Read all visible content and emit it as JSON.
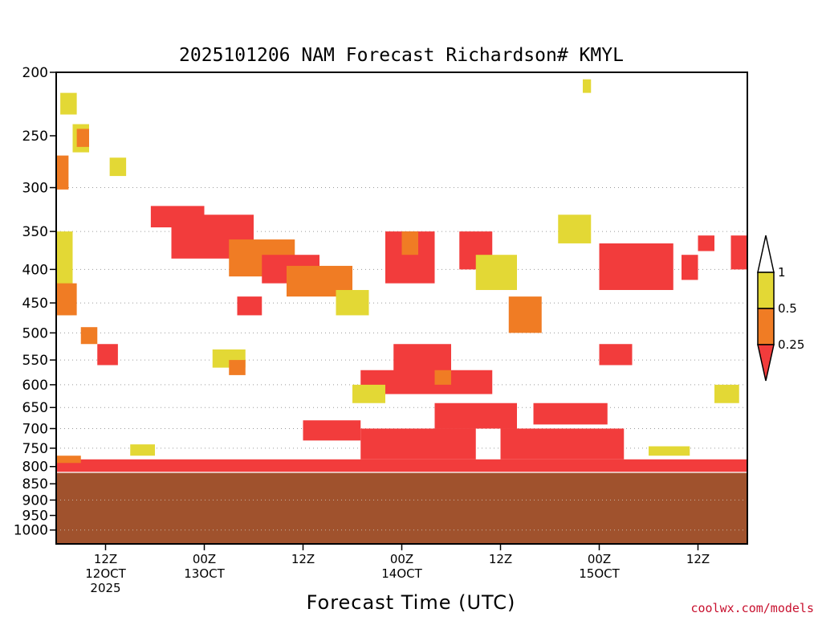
{
  "chart_data": {
    "type": "heatmap",
    "title": "2025101206 NAM Forecast Richardson# KMYL",
    "xlabel": "Forecast Time (UTC)",
    "ylabel": "",
    "y_scale": "log",
    "y_reversed": true,
    "ylim": [
      1050,
      200
    ],
    "y_ticks": [
      200,
      250,
      300,
      350,
      400,
      450,
      500,
      550,
      600,
      650,
      700,
      750,
      800,
      850,
      900,
      950,
      1000
    ],
    "x_range_hours": [
      6,
      90
    ],
    "x_ticks": [
      {
        "hour": 12,
        "lines": [
          "12Z",
          "12OCT",
          "2025"
        ]
      },
      {
        "hour": 24,
        "lines": [
          "00Z",
          "13OCT"
        ]
      },
      {
        "hour": 36,
        "lines": [
          "12Z"
        ]
      },
      {
        "hour": 48,
        "lines": [
          "00Z",
          "14OCT"
        ]
      },
      {
        "hour": 60,
        "lines": [
          "12Z"
        ]
      },
      {
        "hour": 72,
        "lines": [
          "00Z",
          "15OCT"
        ]
      },
      {
        "hour": 84,
        "lines": [
          "12Z"
        ]
      }
    ],
    "grid": "dotted horizontal at 300, 350, 400, 450, 500, 550, 600, 650, 700, 750, 900, 1000",
    "surface_pressure_hPa": 818,
    "colorbar": {
      "levels": [
        "0.25",
        "0.5",
        "1"
      ],
      "colors": {
        "below_0.25": "#f23c3c",
        "0.25-0.5": "#f07c24",
        "0.5-1": "#e3d835",
        "above_1": "#ffffff",
        "ground": "#a0522d"
      }
    },
    "regions": [
      {
        "category": "0.5-1",
        "hours": [
          6.5,
          8.5
        ],
        "p": [
          215,
          232
        ]
      },
      {
        "category": "0.5-1",
        "hours": [
          8,
          10
        ],
        "p": [
          240,
          265
        ]
      },
      {
        "category": "0.25-0.5",
        "hours": [
          8.5,
          10
        ],
        "p": [
          244,
          260
        ]
      },
      {
        "category": "0.25-0.5",
        "hours": [
          6,
          7.5
        ],
        "p": [
          268,
          302
        ]
      },
      {
        "category": "0.5-1",
        "hours": [
          12.5,
          14.5
        ],
        "p": [
          270,
          288
        ]
      },
      {
        "category": "0.5-1",
        "hours": [
          6,
          8
        ],
        "p": [
          350,
          470
        ]
      },
      {
        "category": "0.25-0.5",
        "hours": [
          6,
          8.5
        ],
        "p": [
          420,
          470
        ]
      },
      {
        "category": "0.25-0.5",
        "hours": [
          9,
          11
        ],
        "p": [
          490,
          520
        ]
      },
      {
        "category": "below_0.25",
        "hours": [
          11,
          13.5
        ],
        "p": [
          520,
          560
        ]
      },
      {
        "category": "below_0.25",
        "hours": [
          17.5,
          24
        ],
        "p": [
          320,
          345
        ]
      },
      {
        "category": "below_0.25",
        "hours": [
          20,
          30
        ],
        "p": [
          330,
          385
        ]
      },
      {
        "category": "0.25-0.5",
        "hours": [
          27,
          35
        ],
        "p": [
          360,
          410
        ]
      },
      {
        "category": "below_0.25",
        "hours": [
          31,
          38
        ],
        "p": [
          380,
          420
        ]
      },
      {
        "category": "0.25-0.5",
        "hours": [
          34,
          42
        ],
        "p": [
          395,
          440
        ]
      },
      {
        "category": "below_0.25",
        "hours": [
          46,
          52
        ],
        "p": [
          350,
          420
        ]
      },
      {
        "category": "0.25-0.5",
        "hours": [
          48,
          50
        ],
        "p": [
          350,
          380
        ]
      },
      {
        "category": "below_0.25",
        "hours": [
          55,
          59
        ],
        "p": [
          350,
          400
        ]
      },
      {
        "category": "0.5-1",
        "hours": [
          40,
          44
        ],
        "p": [
          430,
          470
        ]
      },
      {
        "category": "0.5-1",
        "hours": [
          57,
          62
        ],
        "p": [
          380,
          430
        ]
      },
      {
        "category": "0.25-0.5",
        "hours": [
          61,
          65
        ],
        "p": [
          440,
          500
        ]
      },
      {
        "category": "0.5-1",
        "hours": [
          67,
          71
        ],
        "p": [
          330,
          365
        ]
      },
      {
        "category": "0.5-1",
        "hours": [
          70,
          71
        ],
        "p": [
          205,
          215
        ]
      },
      {
        "category": "below_0.25",
        "hours": [
          72,
          81
        ],
        "p": [
          365,
          430
        ]
      },
      {
        "category": "below_0.25",
        "hours": [
          82,
          84
        ],
        "p": [
          380,
          415
        ]
      },
      {
        "category": "below_0.25",
        "hours": [
          84,
          86
        ],
        "p": [
          355,
          375
        ]
      },
      {
        "category": "below_0.25",
        "hours": [
          88,
          90
        ],
        "p": [
          355,
          400
        ]
      },
      {
        "category": "below_0.25",
        "hours": [
          28,
          31
        ],
        "p": [
          440,
          470
        ]
      },
      {
        "category": "0.5-1",
        "hours": [
          25,
          29
        ],
        "p": [
          530,
          565
        ]
      },
      {
        "category": "0.25-0.5",
        "hours": [
          27,
          29
        ],
        "p": [
          550,
          580
        ]
      },
      {
        "category": "below_0.25",
        "hours": [
          47,
          54
        ],
        "p": [
          520,
          580
        ]
      },
      {
        "category": "below_0.25",
        "hours": [
          43,
          59
        ],
        "p": [
          570,
          620
        ]
      },
      {
        "category": "0.25-0.5",
        "hours": [
          52,
          54
        ],
        "p": [
          570,
          600
        ]
      },
      {
        "category": "0.5-1",
        "hours": [
          42,
          46
        ],
        "p": [
          600,
          640
        ]
      },
      {
        "category": "below_0.25",
        "hours": [
          36,
          43
        ],
        "p": [
          680,
          730
        ]
      },
      {
        "category": "below_0.25",
        "hours": [
          43,
          57
        ],
        "p": [
          700,
          780
        ]
      },
      {
        "category": "below_0.25",
        "hours": [
          52,
          62
        ],
        "p": [
          640,
          700
        ]
      },
      {
        "category": "below_0.25",
        "hours": [
          60,
          75
        ],
        "p": [
          700,
          780
        ]
      },
      {
        "category": "below_0.25",
        "hours": [
          64,
          73
        ],
        "p": [
          640,
          690
        ]
      },
      {
        "category": "below_0.25",
        "hours": [
          72,
          76
        ],
        "p": [
          520,
          560
        ]
      },
      {
        "category": "below_0.25",
        "hours": [
          6,
          90
        ],
        "p": [
          780,
          815
        ]
      },
      {
        "category": "0.25-0.5",
        "hours": [
          6,
          9
        ],
        "p": [
          770,
          790
        ]
      },
      {
        "category": "0.5-1",
        "hours": [
          15,
          18
        ],
        "p": [
          740,
          770
        ]
      },
      {
        "category": "0.5-1",
        "hours": [
          78,
          83
        ],
        "p": [
          745,
          770
        ]
      },
      {
        "category": "0.5-1",
        "hours": [
          86,
          89
        ],
        "p": [
          600,
          640
        ]
      }
    ]
  },
  "credit": "coolwx.com/models"
}
